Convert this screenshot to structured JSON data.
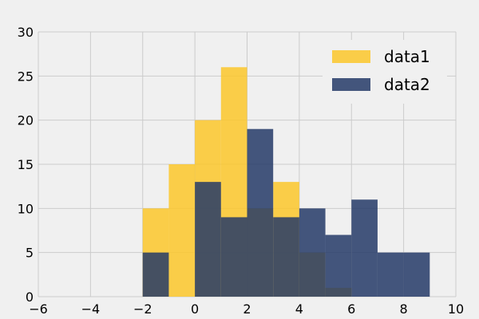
{
  "chart_data": {
    "type": "bar",
    "subtype": "histogram-overlay",
    "title": "",
    "xlabel": "",
    "ylabel": "",
    "xlim": [
      -6,
      10
    ],
    "ylim": [
      0,
      30
    ],
    "x_ticks": [
      -6,
      -4,
      -2,
      0,
      2,
      4,
      6,
      8,
      10
    ],
    "x_tick_labels": [
      "−6",
      "−4",
      "−2",
      "0",
      "2",
      "4",
      "6",
      "8",
      "10"
    ],
    "y_ticks": [
      0,
      5,
      10,
      15,
      20,
      25,
      30
    ],
    "y_tick_labels": [
      "0",
      "5",
      "10",
      "15",
      "20",
      "25",
      "30"
    ],
    "grid": true,
    "legend_position": "top-right",
    "series": [
      {
        "name": "data1",
        "color": "#fcc72a",
        "opacity": 0.85,
        "bins": [
          {
            "x0": -2,
            "x1": -1,
            "count": 10
          },
          {
            "x0": -1,
            "x1": 0,
            "count": 15
          },
          {
            "x0": 0,
            "x1": 1,
            "count": 20
          },
          {
            "x0": 1,
            "x1": 2,
            "count": 26
          },
          {
            "x0": 2,
            "x1": 3,
            "count": 10
          },
          {
            "x0": 3,
            "x1": 4,
            "count": 13
          },
          {
            "x0": 4,
            "x1": 5,
            "count": 5
          },
          {
            "x0": 5,
            "x1": 6,
            "count": 1
          }
        ]
      },
      {
        "name": "data2",
        "color": "#253a67",
        "opacity": 0.85,
        "bins": [
          {
            "x0": -2,
            "x1": -1,
            "count": 5
          },
          {
            "x0": 0,
            "x1": 1,
            "count": 13
          },
          {
            "x0": 1,
            "x1": 2,
            "count": 9
          },
          {
            "x0": 2,
            "x1": 3,
            "count": 19
          },
          {
            "x0": 3,
            "x1": 4,
            "count": 9
          },
          {
            "x0": 4,
            "x1": 5,
            "count": 10
          },
          {
            "x0": 5,
            "x1": 6,
            "count": 7
          },
          {
            "x0": 6,
            "x1": 7,
            "count": 11
          },
          {
            "x0": 7,
            "x1": 8,
            "count": 5
          },
          {
            "x0": 8,
            "x1": 9,
            "count": 5
          }
        ]
      }
    ]
  }
}
